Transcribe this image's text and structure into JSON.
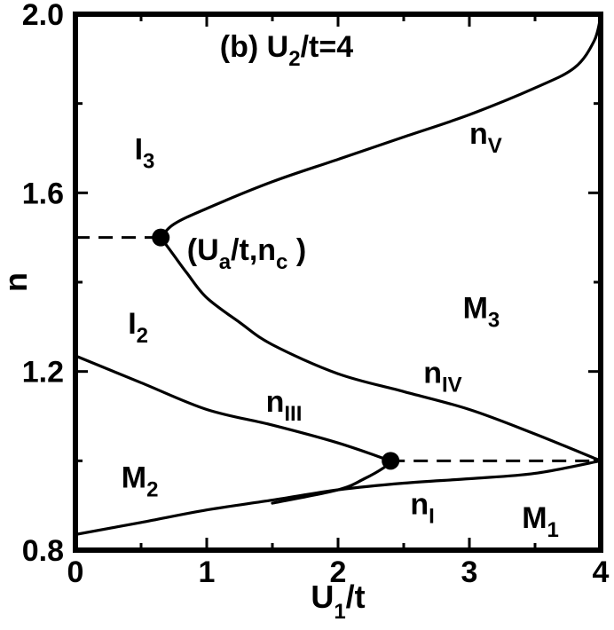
{
  "chart_data": {
    "type": "line",
    "xlabel": {
      "main": "U",
      "sub": "1",
      "tail": "/t"
    },
    "ylabel": "n",
    "xlim": [
      0,
      4
    ],
    "ylim": [
      0.8,
      2.0
    ],
    "x_ticks": [
      "0",
      "1",
      "2",
      "3",
      "4"
    ],
    "y_ticks": [
      "0.8",
      "1.2",
      "1.6",
      "2.0"
    ],
    "x_tick_values": [
      0,
      1,
      2,
      3,
      4
    ],
    "y_tick_values": [
      0.8,
      1.2,
      1.6,
      2.0
    ],
    "x_minor_ticks": [
      0.5,
      1.5,
      2.5,
      3.5
    ],
    "y_minor_ticks": [
      1.0,
      1.4,
      1.8
    ],
    "grid": false,
    "series": [
      {
        "name": "nV",
        "points": [
          [
            0.65,
            1.5
          ],
          [
            0.75,
            1.53
          ],
          [
            1.0,
            1.565
          ],
          [
            1.5,
            1.625
          ],
          [
            2.0,
            1.675
          ],
          [
            2.5,
            1.725
          ],
          [
            3.0,
            1.775
          ],
          [
            3.5,
            1.835
          ],
          [
            3.8,
            1.88
          ],
          [
            3.95,
            1.94
          ],
          [
            4.0,
            1.995
          ]
        ]
      },
      {
        "name": "nIV",
        "points": [
          [
            0.65,
            1.5
          ],
          [
            0.75,
            1.46
          ],
          [
            0.85,
            1.42
          ],
          [
            1.0,
            1.365
          ],
          [
            1.25,
            1.31
          ],
          [
            1.5,
            1.26
          ],
          [
            2.0,
            1.195
          ],
          [
            2.5,
            1.155
          ],
          [
            3.0,
            1.115
          ],
          [
            3.5,
            1.06
          ],
          [
            4.0,
            1.0
          ]
        ]
      },
      {
        "name": "nIII",
        "points": [
          [
            0.0,
            1.235
          ],
          [
            0.5,
            1.175
          ],
          [
            1.0,
            1.115
          ],
          [
            1.5,
            1.08
          ],
          [
            2.0,
            1.04
          ],
          [
            2.4,
            1.0
          ]
        ]
      },
      {
        "name": "nI",
        "points": [
          [
            0.0,
            0.835
          ],
          [
            0.5,
            0.862
          ],
          [
            1.0,
            0.89
          ],
          [
            1.5,
            0.912
          ],
          [
            2.0,
            0.935
          ],
          [
            2.5,
            0.95
          ],
          [
            3.0,
            0.96
          ],
          [
            3.5,
            0.972
          ],
          [
            4.0,
            1.0
          ]
        ]
      },
      {
        "name": "nI-lower-branch",
        "points": [
          [
            1.5,
            0.905
          ],
          [
            2.0,
            0.935
          ],
          [
            2.2,
            0.96
          ],
          [
            2.35,
            0.985
          ],
          [
            2.4,
            1.0
          ]
        ]
      }
    ],
    "dashed_lines": [
      {
        "x": [
          0.0,
          0.65
        ],
        "y": [
          1.5,
          1.5
        ]
      },
      {
        "x": [
          2.4,
          4.0
        ],
        "y": [
          1.0,
          1.0
        ]
      }
    ],
    "markers": [
      {
        "x": 0.65,
        "y": 1.5
      },
      {
        "x": 2.4,
        "y": 1.0
      }
    ],
    "annotations": [
      {
        "id": "title",
        "main": "(b) U",
        "sub": "2",
        "tail": "/t=4",
        "x": 1.1,
        "y": 1.905
      },
      {
        "id": "region-I3",
        "main": "I",
        "sub": "3",
        "tail": "",
        "x": 0.45,
        "y": 1.675
      },
      {
        "id": "label-nV",
        "main": "n",
        "sub": "V",
        "tail": "",
        "x": 3.0,
        "y": 1.71
      },
      {
        "id": "point-label",
        "main": "(U",
        "sub": "a",
        "tail": "/t,n",
        "sub2": "c",
        "tail2": " )",
        "x": 0.85,
        "y": 1.45
      },
      {
        "id": "region-I2",
        "main": "I",
        "sub": "2",
        "tail": "",
        "x": 0.4,
        "y": 1.285
      },
      {
        "id": "region-M3",
        "main": "M",
        "sub": "3",
        "tail": "",
        "x": 2.95,
        "y": 1.32
      },
      {
        "id": "label-nIV",
        "main": "n",
        "sub": "IV",
        "tail": "",
        "x": 2.65,
        "y": 1.175
      },
      {
        "id": "label-nIII",
        "main": "n",
        "sub": "III",
        "tail": "",
        "x": 1.45,
        "y": 1.11
      },
      {
        "id": "region-M2",
        "main": "M",
        "sub": "2",
        "tail": "",
        "x": 0.35,
        "y": 0.94
      },
      {
        "id": "label-nI",
        "main": "n",
        "sub": "I",
        "tail": "",
        "x": 2.55,
        "y": 0.88
      },
      {
        "id": "region-M1",
        "main": "M",
        "sub": "1",
        "tail": "",
        "x": 3.4,
        "y": 0.85
      }
    ]
  }
}
